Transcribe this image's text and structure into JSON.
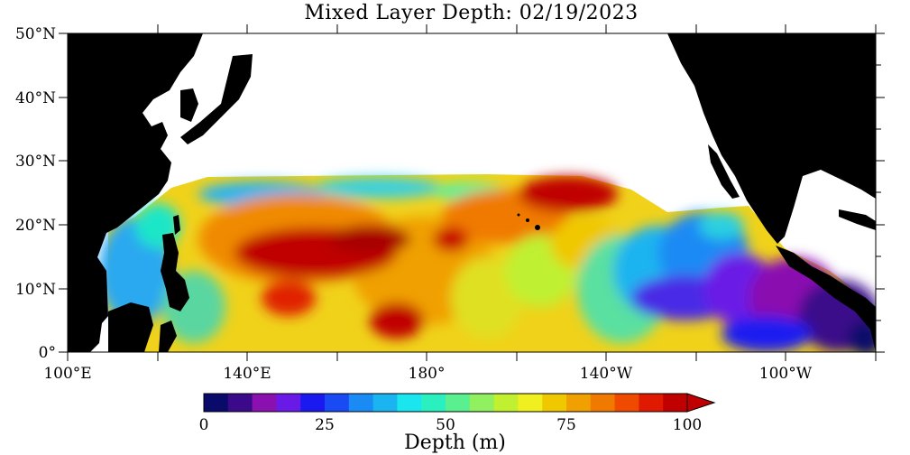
{
  "title": "Mixed Layer Depth: 02/19/2023",
  "lat_labels": [
    "50°N",
    "40°N",
    "30°N",
    "20°N",
    "10°N",
    "0°"
  ],
  "lon_labels": [
    "100°E",
    "140°E",
    "180°",
    "140°W",
    "100°W"
  ],
  "colorbar": {
    "ticks": [
      "0",
      "25",
      "50",
      "75",
      "100"
    ],
    "label": "Depth (m)",
    "colors": [
      "#0a0a6a",
      "#3a0a8a",
      "#8a10b0",
      "#6a1ae6",
      "#1a1af0",
      "#1a4af4",
      "#1a8af4",
      "#1ab4f0",
      "#1ae6f0",
      "#2af0c0",
      "#5af090",
      "#90f060",
      "#c0f030",
      "#f0f020",
      "#f0c800",
      "#f0a000",
      "#f07a00",
      "#f04a00",
      "#e01a00",
      "#c00000"
    ],
    "extend_color": "#c00000"
  },
  "map_data": {
    "lat_range": [
      0,
      50
    ],
    "lon_range": [
      100,
      280
    ],
    "colors": {
      "land": "#000000",
      "no_data": "#ffffff"
    }
  }
}
